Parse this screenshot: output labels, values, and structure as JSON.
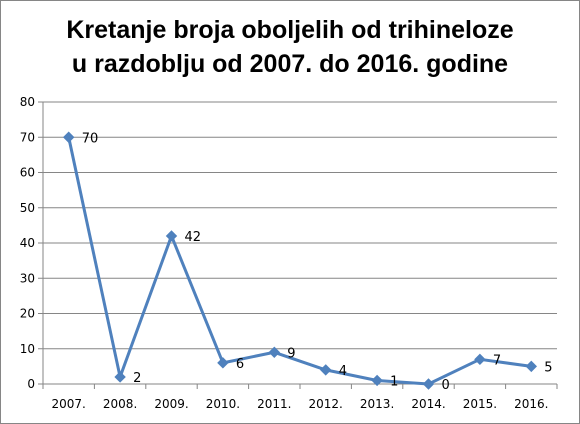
{
  "chart_data": {
    "type": "line",
    "title_lines": [
      "Kretanje broja oboljelih od trihineloze",
      "u razdoblju od 2007. do 2016. godine"
    ],
    "categories": [
      "2007.",
      "2008.",
      "2009.",
      "2010.",
      "2011.",
      "2012.",
      "2013.",
      "2014.",
      "2015.",
      "2016."
    ],
    "series": [
      {
        "values": [
          70,
          2,
          42,
          6,
          9,
          4,
          1,
          0,
          7,
          5
        ],
        "color": "#4F81BD"
      }
    ],
    "data_labels": [
      "70",
      "2",
      "42",
      "6",
      "9",
      "4",
      "1",
      "0",
      "7",
      "5"
    ],
    "xlabel": "",
    "ylabel": "",
    "ylim": [
      0,
      80
    ],
    "yticks": [
      "0",
      "10",
      "20",
      "30",
      "40",
      "50",
      "60",
      "70",
      "80"
    ],
    "grid": true,
    "legend": "none",
    "marker": "diamond"
  }
}
